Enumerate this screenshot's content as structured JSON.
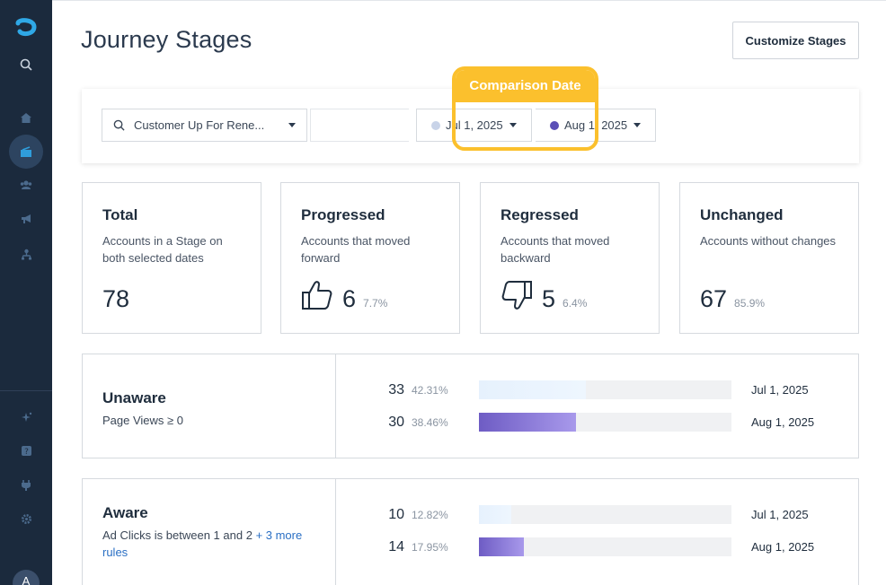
{
  "page": {
    "title": "Journey Stages",
    "customize_label": "Customize Stages"
  },
  "filters": {
    "segment": "Customer Up For Rene...",
    "date_a": "Jul 1, 2025",
    "date_b": "Aug 1, 2025",
    "date_a_color": "#c8d3e8",
    "date_b_color": "#5b4fb6",
    "comparison_label": "Comparison Date",
    "highlight_color": "#fbc02d"
  },
  "stats": [
    {
      "title": "Total",
      "desc": "Accounts in a Stage on both selected dates",
      "value": "78",
      "pct": ""
    },
    {
      "title": "Progressed",
      "desc": "Accounts that moved forward",
      "value": "6",
      "pct": "7.7%",
      "icon": "thumbs-up-icon"
    },
    {
      "title": "Regressed",
      "desc": "Accounts that moved backward",
      "value": "5",
      "pct": "6.4%",
      "icon": "thumbs-down-icon"
    },
    {
      "title": "Unchanged",
      "desc": "Accounts without changes",
      "value": "67",
      "pct": "85.9%"
    }
  ],
  "stages": [
    {
      "name": "Unaware",
      "rule": "Page Views ≥ 0",
      "rows": [
        {
          "count": "33",
          "pct": "42.31%",
          "fraction": 0.4231,
          "date": "Jul 1, 2025"
        },
        {
          "count": "30",
          "pct": "38.46%",
          "fraction": 0.3846,
          "date": "Aug 1, 2025"
        }
      ]
    },
    {
      "name": "Aware",
      "rule": "Ad Clicks is between 1 and 2",
      "rule_more": "+ 3 more rules",
      "rows": [
        {
          "count": "10",
          "pct": "12.82%",
          "fraction": 0.1282,
          "date": "Jul 1, 2025"
        },
        {
          "count": "14",
          "pct": "17.95%",
          "fraction": 0.1795,
          "date": "Aug 1, 2025"
        }
      ]
    }
  ],
  "sidebar": {
    "icons": [
      "logo-icon",
      "search-icon",
      "home-icon",
      "journey-stages-icon",
      "people-icon",
      "megaphone-icon",
      "org-chart-icon",
      "sparkle-icon",
      "help-icon",
      "plug-icon",
      "gear-icon"
    ],
    "avatar": "A"
  }
}
